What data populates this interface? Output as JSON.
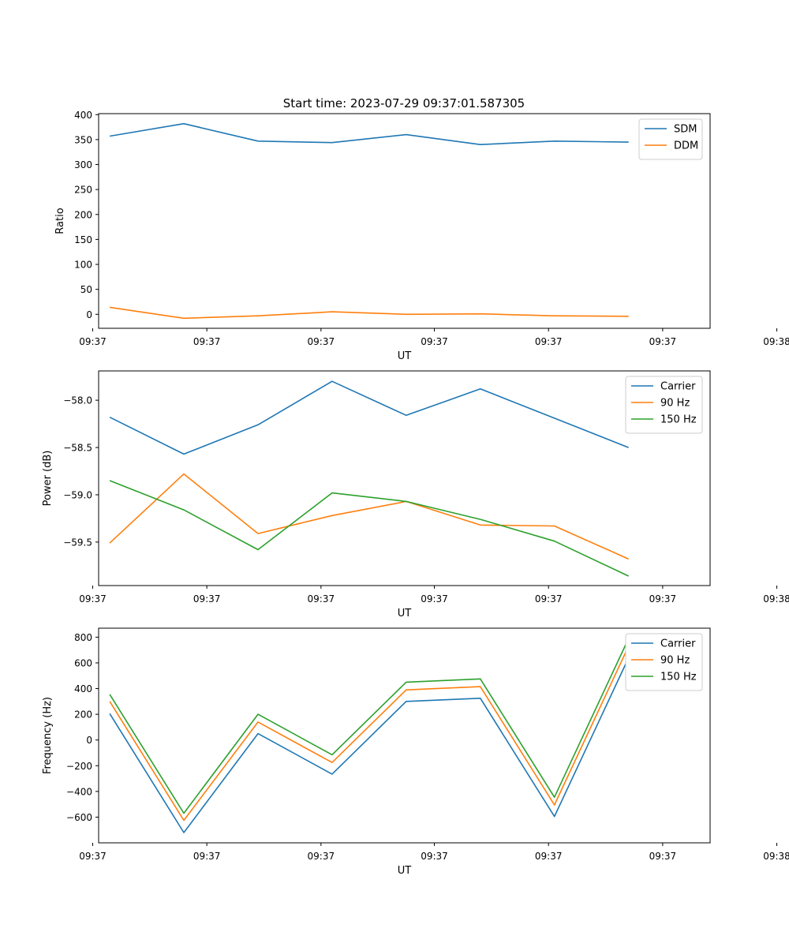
{
  "figure": {
    "title": "Start time: 2023-07-29 09:37:01.587305"
  },
  "chart_data": [
    {
      "type": "line",
      "title": "Start time: 2023-07-29 09:37:01.587305",
      "xlabel": "UT",
      "ylabel": "Ratio",
      "x": [
        1,
        2,
        3,
        4,
        5,
        6,
        7,
        8
      ],
      "xlim": [
        0.85,
        9.1
      ],
      "x_ticks": [
        0.77,
        2.31,
        3.85,
        5.38,
        6.92,
        8.46,
        10.0
      ],
      "x_ticks_note": "tick positions in x index units",
      "x_tick_labels": [
        "09:37",
        "09:37",
        "09:37",
        "09:37",
        "09:37",
        "09:37",
        "09:38"
      ],
      "ylim": [
        -28,
        402
      ],
      "y_ticks": [
        0,
        50,
        100,
        150,
        200,
        250,
        300,
        350,
        400
      ],
      "y_tick_labels": [
        "0",
        "50",
        "100",
        "150",
        "200",
        "250",
        "300",
        "350",
        "400"
      ],
      "legend_position": "top-right",
      "series": [
        {
          "name": "SDM",
          "color": "#1f77b4",
          "values": [
            357,
            382,
            347,
            344,
            360,
            340,
            347,
            345
          ]
        },
        {
          "name": "DDM",
          "color": "#ff7f0e",
          "values": [
            14,
            -8,
            -3,
            5,
            0,
            1,
            -3,
            -4
          ]
        }
      ]
    },
    {
      "type": "line",
      "title": "",
      "xlabel": "UT",
      "ylabel": "Power (dB)",
      "x": [
        1,
        2,
        3,
        4,
        5,
        6,
        7,
        8
      ],
      "xlim": [
        0.85,
        9.1
      ],
      "x_ticks": [
        0.77,
        2.31,
        3.85,
        5.38,
        6.92,
        8.46,
        10.0
      ],
      "x_tick_labels": [
        "09:37",
        "09:37",
        "09:37",
        "09:37",
        "09:37",
        "09:37",
        "09:38"
      ],
      "ylim": [
        -59.96,
        -57.69
      ],
      "y_ticks": [
        -59.5,
        -59.0,
        -58.5,
        -58.0
      ],
      "y_tick_labels": [
        "−59.5",
        "−59.0",
        "−58.5",
        "−58.0"
      ],
      "legend_position": "top-right",
      "series": [
        {
          "name": "Carrier",
          "color": "#1f77b4",
          "values": [
            -58.18,
            -58.57,
            -58.26,
            -57.8,
            -58.16,
            -57.88,
            -58.19,
            -58.5
          ]
        },
        {
          "name": "90 Hz",
          "color": "#ff7f0e",
          "values": [
            -59.51,
            -58.78,
            -59.41,
            -59.22,
            -59.07,
            -59.32,
            -59.33,
            -59.68
          ]
        },
        {
          "name": "150 Hz",
          "color": "#2ca02c",
          "values": [
            -58.85,
            -59.16,
            -59.58,
            -58.98,
            -59.07,
            -59.26,
            -59.49,
            -59.86
          ]
        }
      ]
    },
    {
      "type": "line",
      "title": "",
      "xlabel": "UT",
      "ylabel": "Frequency (Hz)",
      "x": [
        1,
        2,
        3,
        4,
        5,
        6,
        7,
        8
      ],
      "xlim": [
        0.85,
        9.1
      ],
      "x_ticks": [
        0.77,
        2.31,
        3.85,
        5.38,
        6.92,
        8.46,
        10.0
      ],
      "x_tick_labels": [
        "09:37",
        "09:37",
        "09:37",
        "09:37",
        "09:37",
        "09:37",
        "09:38"
      ],
      "ylim": [
        -800,
        870
      ],
      "y_ticks": [
        -600,
        -400,
        -200,
        0,
        200,
        400,
        600,
        800
      ],
      "y_tick_labels": [
        "−600",
        "−400",
        "−200",
        "0",
        "200",
        "400",
        "600",
        "800"
      ],
      "legend_position": "top-right",
      "series": [
        {
          "name": "Carrier",
          "color": "#1f77b4",
          "values": [
            205,
            -720,
            50,
            -265,
            300,
            325,
            -595,
            640
          ]
        },
        {
          "name": "90 Hz",
          "color": "#ff7f0e",
          "values": [
            300,
            -625,
            140,
            -175,
            390,
            415,
            -505,
            730
          ]
        },
        {
          "name": "150 Hz",
          "color": "#2ca02c",
          "values": [
            355,
            -570,
            200,
            -115,
            450,
            475,
            -445,
            790
          ]
        }
      ]
    }
  ]
}
